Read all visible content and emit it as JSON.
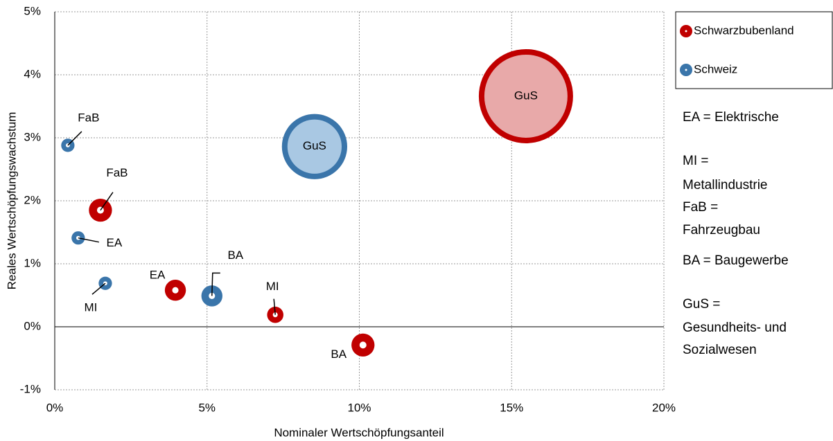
{
  "chart_data": {
    "type": "bubble",
    "x_label": "Nominaler Wertschöpfungsanteil",
    "y_label": "Reales Wertschöpfungswachstum",
    "xlim": [
      0,
      20
    ],
    "ylim": [
      -1,
      5
    ],
    "xticks": [
      {
        "value": 0,
        "label": "0%"
      },
      {
        "value": 5,
        "label": "5%"
      },
      {
        "value": 10,
        "label": "10%"
      },
      {
        "value": 15,
        "label": "15%"
      },
      {
        "value": 20,
        "label": "20%"
      }
    ],
    "yticks": [
      {
        "value": -1,
        "label": "-1%"
      },
      {
        "value": 0,
        "label": "0%"
      },
      {
        "value": 1,
        "label": "1%"
      },
      {
        "value": 2,
        "label": "2%"
      },
      {
        "value": 3,
        "label": "3%"
      },
      {
        "value": 4,
        "label": "4%"
      },
      {
        "value": 5,
        "label": "5%"
      }
    ],
    "grid": true,
    "legend": "right",
    "series": [
      {
        "name": "Schwarzbubenland",
        "color": "#c00000",
        "fill_color": "#e8a9a9",
        "labels": [
          "FaB",
          "EA",
          "MI",
          "BA",
          "GuS"
        ],
        "x": [
          1.5,
          3.96,
          7.24,
          10.12,
          15.47
        ],
        "values": [
          1.85,
          0.58,
          0.19,
          -0.29,
          3.66
        ],
        "sizes": [
          6,
          5,
          3,
          6,
          100
        ]
      },
      {
        "name": "Schweiz",
        "color": "#3a75aa",
        "fill_color": "#a9c8e3",
        "labels": [
          "FaB",
          "EA",
          "MI",
          "BA",
          "GuS"
        ],
        "x": [
          0.43,
          0.77,
          1.66,
          5.16,
          8.53
        ],
        "values": [
          2.88,
          1.41,
          0.69,
          0.49,
          2.86
        ],
        "sizes": [
          2,
          2,
          2,
          5,
          48
        ]
      }
    ],
    "annotations": [
      "EA = Elektrische",
      "MI =",
      "Metallindustrie",
      "FaB =",
      "Fahrzeugbau",
      "BA = Baugewerbe",
      "GuS =",
      "Gesundheits- und",
      "Sozialwesen"
    ]
  }
}
